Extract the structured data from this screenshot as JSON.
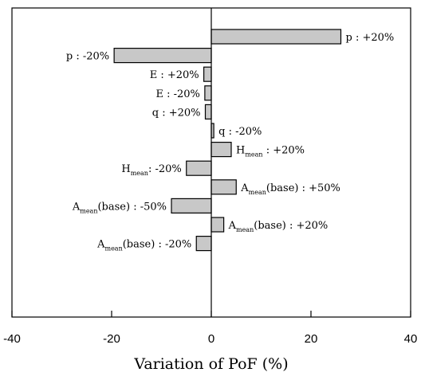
{
  "chart_data": {
    "type": "bar",
    "orientation": "horizontal",
    "xlabel": "Variation of PoF (%)",
    "xlim": [
      -40,
      40
    ],
    "xticks": [
      -40,
      -20,
      0,
      20,
      40
    ],
    "xtick_labels": [
      "-40",
      "-20",
      "0",
      "20",
      "40"
    ],
    "grid": false,
    "bars": [
      {
        "base": "p",
        "sub": "",
        "rest": " : +20%",
        "value": 26,
        "label_side": "right"
      },
      {
        "base": "p",
        "sub": "",
        "rest": " : -20%",
        "value": -19.5,
        "label_side": "left"
      },
      {
        "base": "E",
        "sub": "",
        "rest": " : +20%",
        "value": -1.5,
        "label_side": "left"
      },
      {
        "base": "E",
        "sub": "",
        "rest": " : -20%",
        "value": -1.3,
        "label_side": "left"
      },
      {
        "base": "q",
        "sub": "",
        "rest": " : +20%",
        "value": -1.2,
        "label_side": "left"
      },
      {
        "base": "q",
        "sub": "",
        "rest": " : -20%",
        "value": 0.5,
        "label_side": "right"
      },
      {
        "base": "H",
        "sub": "mean",
        "rest": " : +20%",
        "value": 4,
        "label_side": "right"
      },
      {
        "base": "H",
        "sub": "mean",
        "rest": ": -20%",
        "value": -5,
        "label_side": "left"
      },
      {
        "base": "A",
        "sub": "mean",
        "rest": "(base) : +50%",
        "value": 5,
        "label_side": "right"
      },
      {
        "base": "A",
        "sub": "mean",
        "rest": "(base) : -50%",
        "value": -8,
        "label_side": "left"
      },
      {
        "base": "A",
        "sub": "mean",
        "rest": "(base) : +20%",
        "value": 2.5,
        "label_side": "right"
      },
      {
        "base": "A",
        "sub": "mean",
        "rest": "(base) : -20%",
        "value": -3,
        "label_side": "left"
      }
    ]
  }
}
